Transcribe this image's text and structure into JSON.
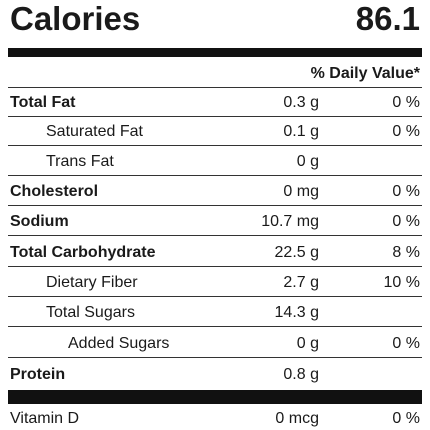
{
  "calories": {
    "label": "Calories",
    "value": "86.1"
  },
  "daily_value_header": "% Daily Value*",
  "nutrients": [
    {
      "name": "Total Fat",
      "amount": "0.3 g",
      "dv": "0 %",
      "bold": true,
      "indent": 0
    },
    {
      "name": "Saturated Fat",
      "amount": "0.1 g",
      "dv": "0 %",
      "bold": false,
      "indent": 1
    },
    {
      "name": "Trans Fat",
      "amount": "0 g",
      "dv": "",
      "bold": false,
      "indent": 1
    },
    {
      "name": "Cholesterol",
      "amount": "0 mg",
      "dv": "0 %",
      "bold": true,
      "indent": 0
    },
    {
      "name": "Sodium",
      "amount": "10.7 mg",
      "dv": "0 %",
      "bold": true,
      "indent": 0
    },
    {
      "name": "Total Carbohydrate",
      "amount": "22.5 g",
      "dv": "8 %",
      "bold": true,
      "indent": 0
    },
    {
      "name": "Dietary Fiber",
      "amount": "2.7 g",
      "dv": "10 %",
      "bold": false,
      "indent": 1
    },
    {
      "name": "Total Sugars",
      "amount": "14.3 g",
      "dv": "",
      "bold": false,
      "indent": 1
    },
    {
      "name": "Added Sugars",
      "amount": "0 g",
      "dv": "0 %",
      "bold": false,
      "indent": 2
    },
    {
      "name": "Protein",
      "amount": "0.8 g",
      "dv": "",
      "bold": true,
      "indent": 0
    }
  ],
  "vitamins": [
    {
      "name": "Vitamin D",
      "amount": "0 mcg",
      "dv": "0 %"
    }
  ]
}
